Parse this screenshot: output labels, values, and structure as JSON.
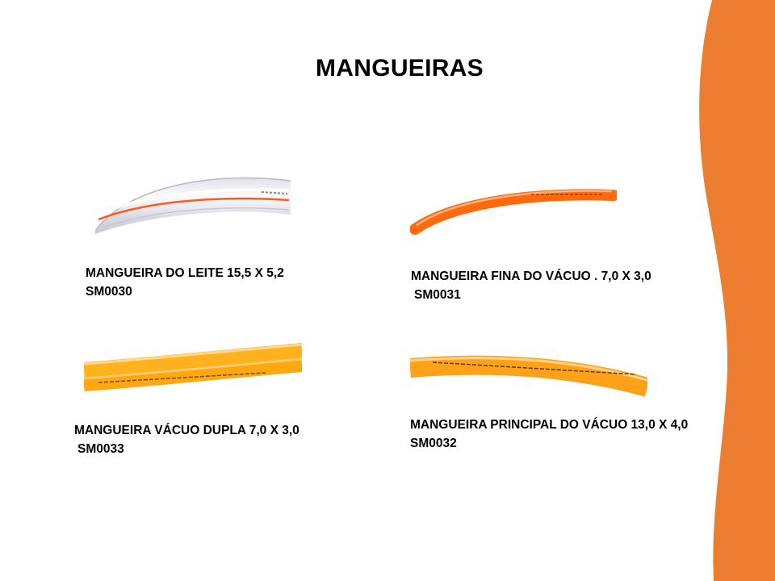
{
  "slide": {
    "title": "MANGUEIRAS",
    "accent_color": "#ED7D31"
  },
  "products": [
    {
      "name": "MANGUEIRA DO LEITE  15,5 X 5,2",
      "code": "SM0030",
      "hose_color": "#f2f2f4",
      "stripe_color": "#ff5a1e"
    },
    {
      "name": "MANGUEIRA FINA DO VÁCUO . 7,0 X 3,0",
      "code": "SM0031",
      "hose_color": "#ff6a10"
    },
    {
      "name": "MANGUEIRA VÁCUO DUPLA 7,0 X 3,0",
      "code": "SM0033",
      "hose_color": "#ffb21e"
    },
    {
      "name": "MANGUEIRA PRINCIPAL DO VÁCUO 13,0 X 4,0",
      "code": "SM0032",
      "hose_color": "#ffa21a"
    }
  ]
}
